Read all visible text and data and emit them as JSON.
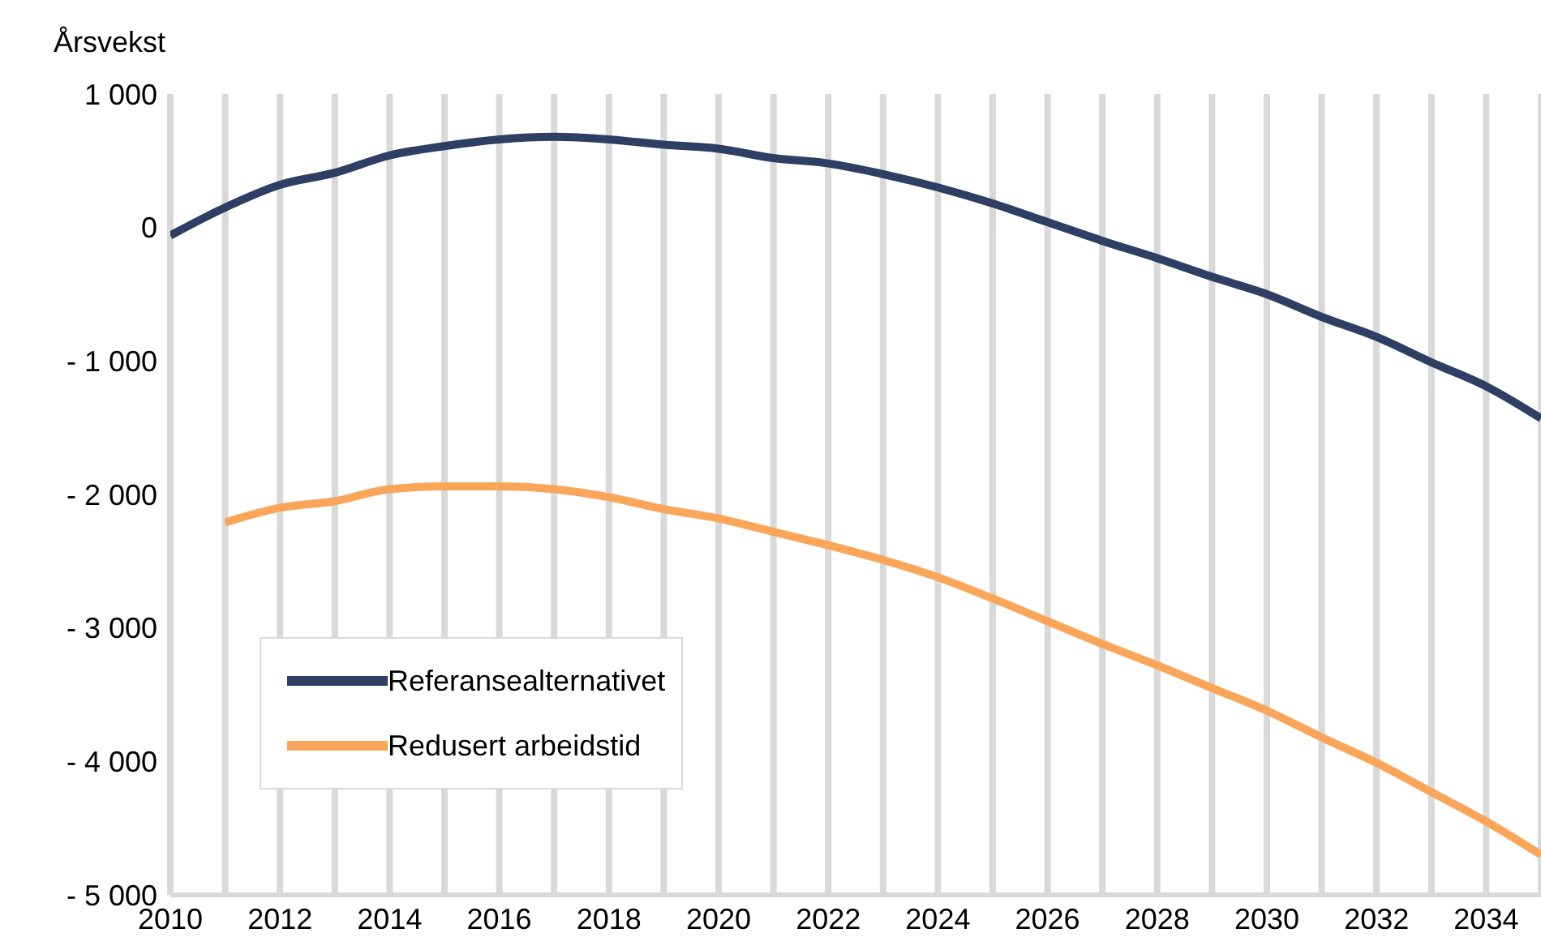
{
  "chart_data": {
    "type": "line",
    "ylabel": "Årsvekst",
    "x": [
      2010,
      2011,
      2012,
      2013,
      2014,
      2015,
      2016,
      2017,
      2018,
      2019,
      2020,
      2021,
      2022,
      2023,
      2024,
      2025,
      2026,
      2027,
      2028,
      2029,
      2030,
      2031,
      2032,
      2033,
      2034,
      2035
    ],
    "series": [
      {
        "name": "Referansealternativet",
        "color": "#2e3f63",
        "values": [
          -60,
          150,
          320,
          410,
          540,
          610,
          660,
          680,
          660,
          620,
          590,
          520,
          480,
          400,
          300,
          180,
          40,
          -100,
          -230,
          -370,
          -500,
          -670,
          -820,
          -1010,
          -1190,
          -1430
        ]
      },
      {
        "name": "Redusert arbeidstid",
        "color": "#f9a65a",
        "values": [
          null,
          -2210,
          -2100,
          -2050,
          -1960,
          -1940,
          -1940,
          -1960,
          -2020,
          -2110,
          -2180,
          -2280,
          -2380,
          -2490,
          -2620,
          -2780,
          -2950,
          -3120,
          -3280,
          -3450,
          -3620,
          -3820,
          -4010,
          -4230,
          -4450,
          -4700
        ]
      }
    ],
    "xlim": [
      2010,
      2035
    ],
    "xticks": [
      2010,
      {
        "value": 2011,
        "label": null
      },
      2012,
      {
        "value": 2013,
        "label": null
      },
      2014,
      {
        "value": 2015,
        "label": null
      },
      2016,
      {
        "value": 2017,
        "label": null
      },
      2018,
      {
        "value": 2019,
        "label": null
      },
      2020,
      {
        "value": 2021,
        "label": null
      },
      2022,
      {
        "value": 2023,
        "label": null
      },
      2024,
      {
        "value": 2025,
        "label": null
      },
      2026,
      {
        "value": 2027,
        "label": null
      },
      2028,
      {
        "value": 2029,
        "label": null
      },
      2030,
      {
        "value": 2031,
        "label": null
      },
      2032,
      {
        "value": 2033,
        "label": null
      },
      2034,
      {
        "value": 2035,
        "label": null
      }
    ],
    "ylim": [
      -5000,
      1000
    ],
    "yticks": [
      {
        "value": -5000,
        "label": "- 5 000"
      },
      {
        "value": -4000,
        "label": "- 4 000"
      },
      {
        "value": -3000,
        "label": "- 3 000"
      },
      {
        "value": -2000,
        "label": "- 2 000"
      },
      {
        "value": -1000,
        "label": "- 1 000"
      },
      0,
      {
        "value": 1000,
        "label": "1 000"
      }
    ],
    "grid": "x",
    "legend": "bottom left",
    "marker": "none",
    "line_style": "solid"
  }
}
